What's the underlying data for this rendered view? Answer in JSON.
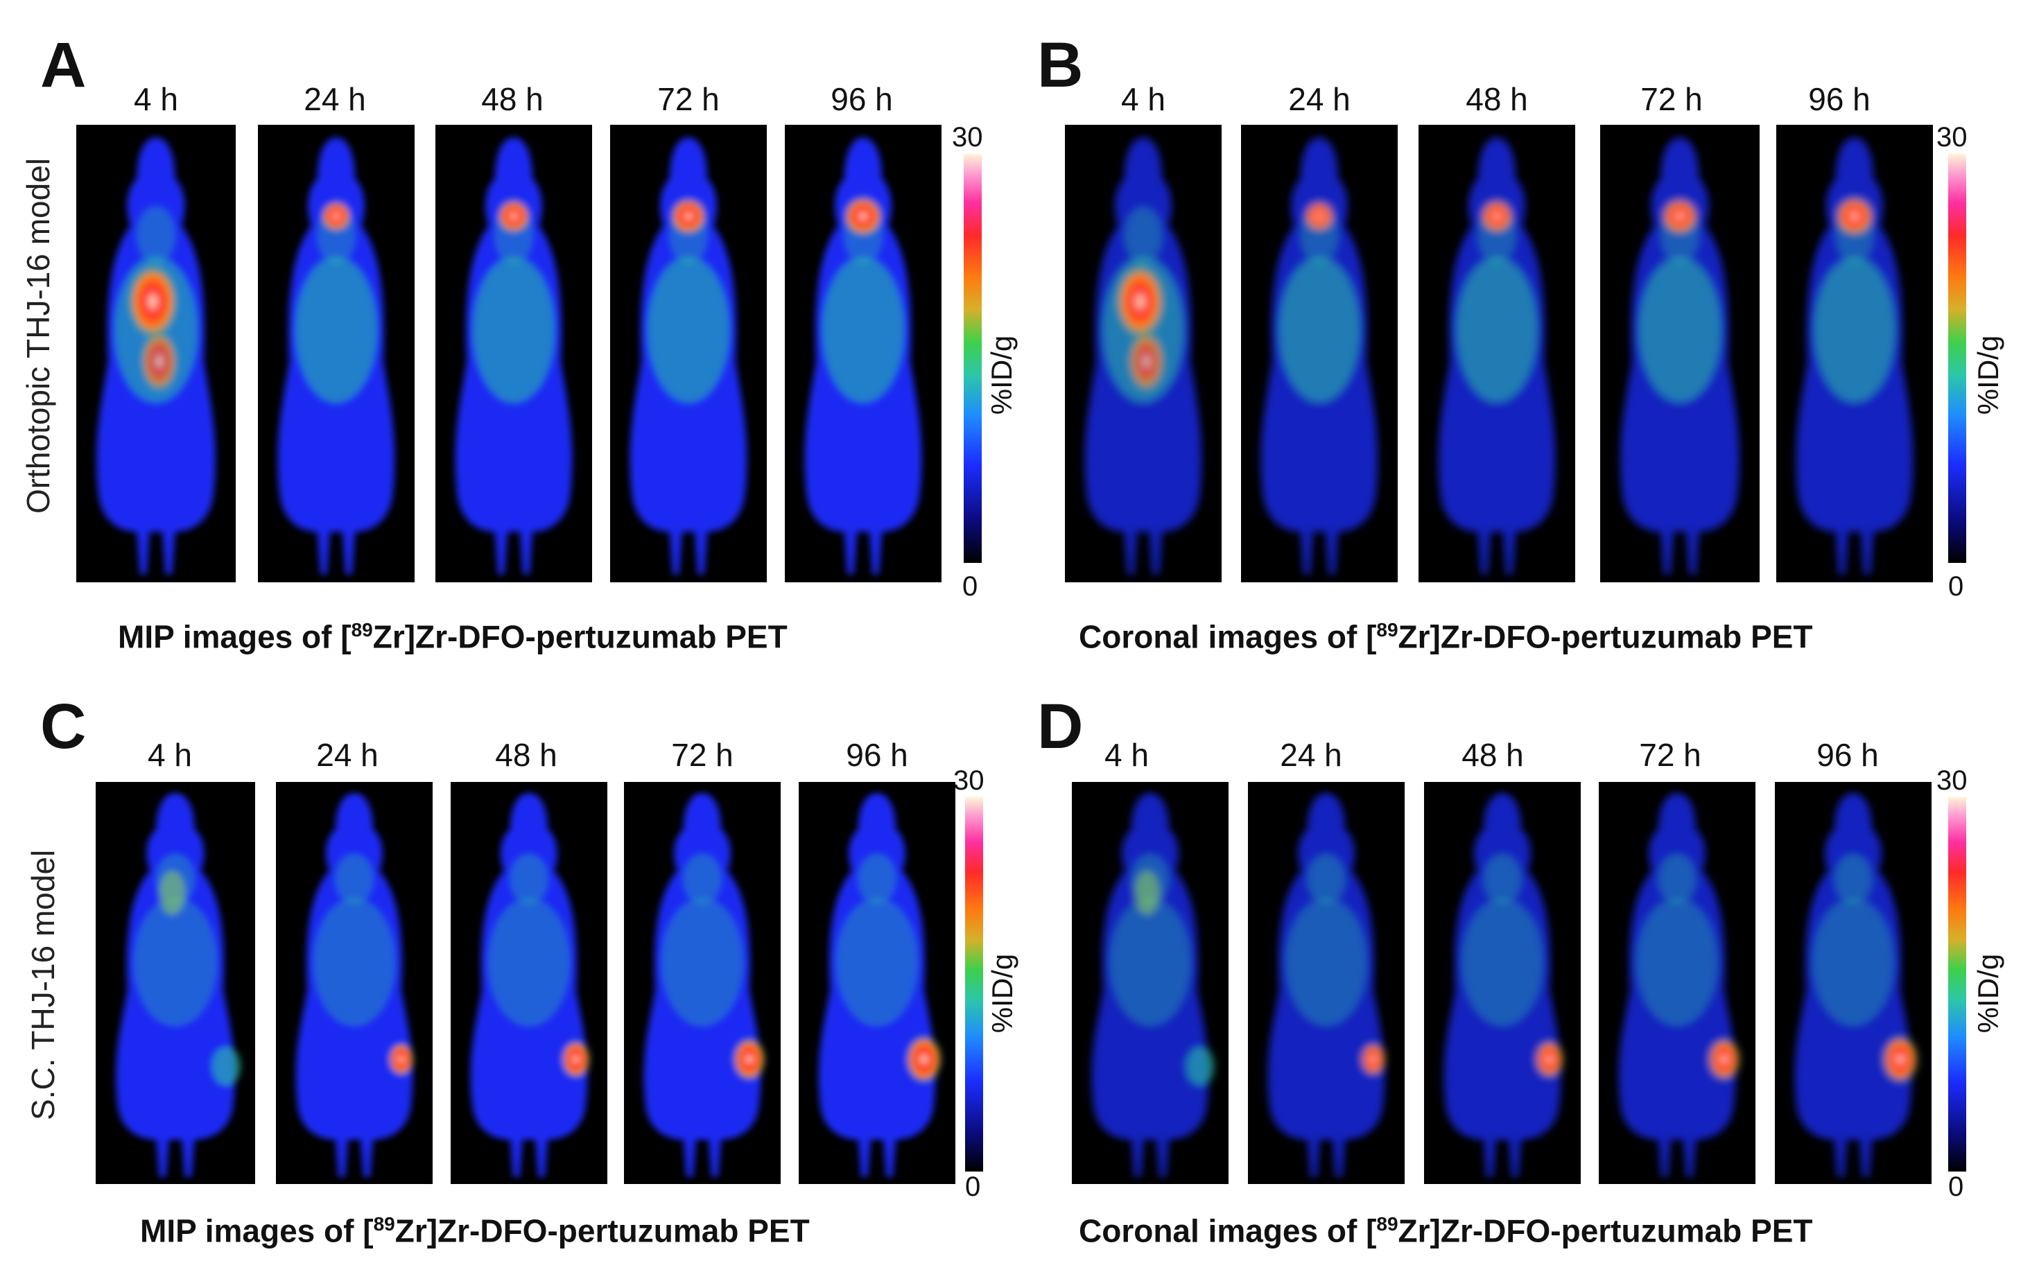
{
  "panels": {
    "A": {
      "letter": "A",
      "time_labels": [
        "4 h",
        "24 h",
        "48 h",
        "72 h",
        "96 h"
      ],
      "model_label": "Orthotopic THJ-16 model",
      "caption_pre": "MIP images of [",
      "caption_sup": "89",
      "caption_post": "Zr]Zr-DFO-pertuzumab PET",
      "colorbar": {
        "max": "30",
        "min": "0",
        "unit": "%ID/g"
      }
    },
    "B": {
      "letter": "B",
      "time_labels": [
        "4 h",
        "24 h",
        "48 h",
        "72 h",
        "96 h"
      ],
      "caption_pre": "Coronal images of [",
      "caption_sup": "89",
      "caption_post": "Zr]Zr-DFO-pertuzumab PET",
      "colorbar": {
        "max": "30",
        "min": "0",
        "unit": "%ID/g"
      }
    },
    "C": {
      "letter": "C",
      "time_labels": [
        "4 h",
        "24 h",
        "48 h",
        "72 h",
        "96 h"
      ],
      "model_label": "S.C. THJ-16 model",
      "caption_pre": "MIP images of [",
      "caption_sup": "89",
      "caption_post": "Zr]Zr-DFO-pertuzumab PET",
      "colorbar": {
        "max": "30",
        "min": "0",
        "unit": "%ID/g"
      }
    },
    "D": {
      "letter": "D",
      "time_labels": [
        "4 h",
        "24 h",
        "48 h",
        "72 h",
        "96 h"
      ],
      "caption_pre": "Coronal images of [",
      "caption_sup": "89",
      "caption_post": "Zr]Zr-DFO-pertuzumab PET",
      "colorbar": {
        "max": "30",
        "min": "0",
        "unit": "%ID/g"
      }
    }
  },
  "colors": {
    "background": "#000000",
    "body_low": "#1b2dff",
    "body_mid": "#2cc7a8",
    "hot": "#ff2a2a",
    "peak": "#fff3d6"
  }
}
